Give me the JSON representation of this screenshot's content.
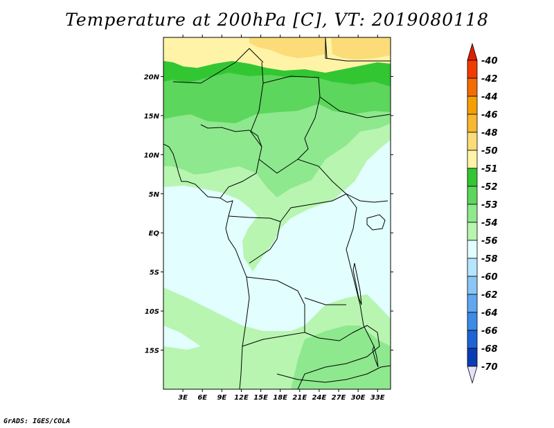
{
  "title": "Temperature at 200hPa [C], VT: 2019080118",
  "footer": "GrADS: IGES/COLA",
  "map": {
    "lat_range": [
      -20,
      25
    ],
    "lon_range": [
      0,
      35
    ],
    "lat_labels": [
      {
        "lat": 20,
        "text": "20N"
      },
      {
        "lat": 15,
        "text": "15N"
      },
      {
        "lat": 10,
        "text": "10N"
      },
      {
        "lat": 5,
        "text": "5N"
      },
      {
        "lat": 0,
        "text": "EQ"
      },
      {
        "lat": -5,
        "text": "5S"
      },
      {
        "lat": -10,
        "text": "10S"
      },
      {
        "lat": -15,
        "text": "15S"
      }
    ],
    "lon_labels": [
      {
        "lon": 3,
        "text": "3E"
      },
      {
        "lon": 6,
        "text": "6E"
      },
      {
        "lon": 9,
        "text": "9E"
      },
      {
        "lon": 12,
        "text": "12E"
      },
      {
        "lon": 15,
        "text": "15E"
      },
      {
        "lon": 18,
        "text": "18E"
      },
      {
        "lon": 21,
        "text": "21E"
      },
      {
        "lon": 24,
        "text": "24E"
      },
      {
        "lon": 27,
        "text": "27E"
      },
      {
        "lon": 30,
        "text": "30E"
      },
      {
        "lon": 33,
        "text": "33E"
      }
    ]
  },
  "colorbar": {
    "levels": [
      {
        "label": "-40",
        "color": "#f03c00"
      },
      {
        "label": "-42",
        "color": "#f36c00"
      },
      {
        "label": "-44",
        "color": "#f5a000"
      },
      {
        "label": "-46",
        "color": "#f6b830"
      },
      {
        "label": "-48",
        "color": "#fbdc78"
      },
      {
        "label": "-50",
        "color": "#fff3a8"
      },
      {
        "label": "-51",
        "color": "#33c633"
      },
      {
        "label": "-52",
        "color": "#5cd65c"
      },
      {
        "label": "-53",
        "color": "#8ee88e"
      },
      {
        "label": "-54",
        "color": "#b8f5b0"
      },
      {
        "label": "-56",
        "color": "#e2fefe"
      },
      {
        "label": "-58",
        "color": "#b4e6ff"
      },
      {
        "label": "-60",
        "color": "#8ac6f5"
      },
      {
        "label": "-62",
        "color": "#5fa8ef"
      },
      {
        "label": "-64",
        "color": "#3c8be6"
      },
      {
        "label": "-66",
        "color": "#1e64d6"
      },
      {
        "label": "-68",
        "color": "#0a3cb4"
      },
      {
        "label": "-70",
        "color": "#08236e"
      }
    ],
    "top_arrow_color": "#e01e00",
    "bottom_arrow_color": "#e6e0fa"
  }
}
